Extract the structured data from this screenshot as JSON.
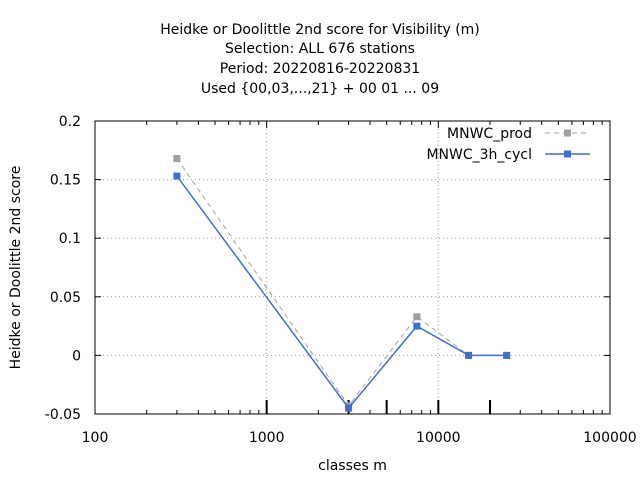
{
  "chart_data": {
    "type": "line",
    "title_lines": [
      "Heidke or Doolittle 2nd score  for Visibility (m)",
      "Selection: ALL     676 stations",
      "Period: 20220816-20220831",
      "Used {00,03,...,21} + 00 01 ... 09"
    ],
    "xlabel": "classes m",
    "ylabel": "Heidke or Doolittle 2nd score",
    "x_scale": "log",
    "xlim": [
      100,
      100000
    ],
    "ylim": [
      -0.05,
      0.2
    ],
    "x_ticks": [
      100,
      1000,
      10000,
      100000
    ],
    "x_tick_labels": [
      "100",
      "1000",
      "10000",
      "100000"
    ],
    "y_ticks": [
      -0.05,
      0,
      0.05,
      0.1,
      0.15,
      0.2
    ],
    "y_tick_labels": [
      "-0.05",
      "0",
      "0.05",
      "0.1",
      "0.15",
      "0.2"
    ],
    "grid": true,
    "legend_position": "top-right",
    "class_markers": [
      1000,
      3000,
      5000,
      10000,
      20000
    ],
    "series": [
      {
        "name": "MNWC_prod",
        "color": "#a0a0a0",
        "dash": true,
        "x": [
          300,
          3000,
          7500,
          15000,
          25000
        ],
        "y": [
          0.168,
          -0.043,
          0.033,
          0.0,
          0.0
        ]
      },
      {
        "name": "MNWC_3h_cycl",
        "color": "#3f6fd1",
        "dash": false,
        "x": [
          300,
          3000,
          7500,
          15000,
          25000
        ],
        "y": [
          0.153,
          -0.045,
          0.025,
          0.0,
          0.0
        ]
      }
    ]
  }
}
